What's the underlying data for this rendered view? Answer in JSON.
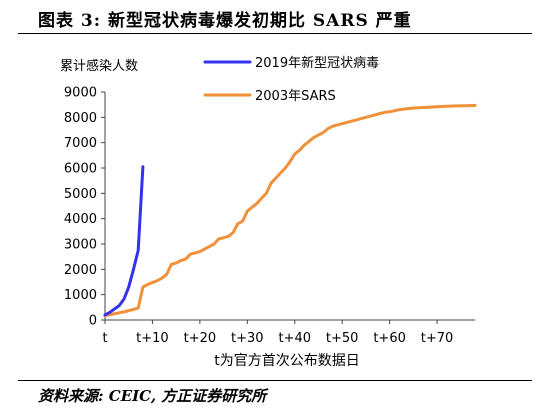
{
  "figure": {
    "title": "图表 3:  新型冠状病毒爆发初期比 SARS 严重",
    "source": "资料来源: CEIC, 方正证券研究所"
  },
  "chart_data": {
    "type": "line",
    "ylabel": "累计感染人数",
    "xlabel": "t为官方首次公布数据日",
    "ylim": [
      0,
      9000
    ],
    "yticks": [
      0,
      1000,
      2000,
      3000,
      4000,
      5000,
      6000,
      7000,
      8000,
      9000
    ],
    "xlim": [
      0,
      78
    ],
    "xticks": [
      0,
      10,
      20,
      30,
      40,
      50,
      60,
      70
    ],
    "xtick_labels": [
      "t",
      "t+10",
      "t+20",
      "t+30",
      "t+40",
      "t+50",
      "t+60",
      "t+70"
    ],
    "grid": false,
    "legend_position": "top",
    "series": [
      {
        "name": "2019年新型冠状病毒",
        "color": "#3333ee",
        "x": [
          0,
          1,
          2,
          3,
          4,
          5,
          6,
          7,
          8
        ],
        "y": [
          200,
          300,
          440,
          570,
          830,
          1300,
          2000,
          2750,
          6050
        ]
      },
      {
        "name": "2003年SARS",
        "color": "#f0913a",
        "x": [
          0,
          2,
          4,
          6,
          7,
          8,
          9,
          10,
          11,
          12,
          13,
          14,
          15,
          16,
          17,
          18,
          19,
          20,
          21,
          22,
          23,
          24,
          25,
          26,
          27,
          28,
          29,
          30,
          31,
          32,
          33,
          34,
          35,
          36,
          37,
          38,
          39,
          40,
          41,
          42,
          43,
          44,
          45,
          46,
          47,
          48,
          49,
          50,
          51,
          52,
          53,
          54,
          55,
          56,
          57,
          58,
          59,
          60,
          62,
          64,
          66,
          68,
          70,
          72,
          74,
          76,
          78
        ],
        "y": [
          170,
          250,
          320,
          420,
          470,
          1300,
          1400,
          1480,
          1550,
          1650,
          1800,
          2200,
          2250,
          2350,
          2400,
          2600,
          2650,
          2700,
          2800,
          2900,
          3000,
          3200,
          3250,
          3300,
          3450,
          3800,
          3900,
          4300,
          4450,
          4600,
          4800,
          5000,
          5400,
          5600,
          5800,
          6000,
          6250,
          6550,
          6700,
          6900,
          7050,
          7200,
          7300,
          7400,
          7550,
          7650,
          7700,
          7750,
          7800,
          7850,
          7900,
          7950,
          8000,
          8050,
          8100,
          8150,
          8200,
          8220,
          8300,
          8350,
          8380,
          8400,
          8420,
          8440,
          8450,
          8460,
          8470
        ]
      }
    ]
  }
}
